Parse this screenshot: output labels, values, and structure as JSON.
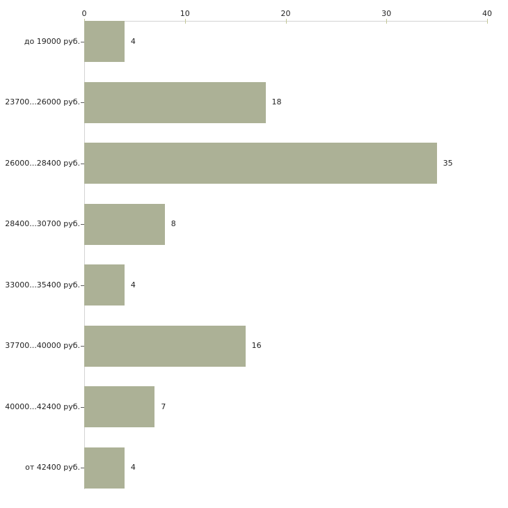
{
  "chart_data": {
    "type": "bar",
    "orientation": "horizontal",
    "title": "",
    "xlabel": "",
    "ylabel": "",
    "categories": [
      "до 19000 руб.",
      "23700...26000 руб.",
      "26000...28400 руб.",
      "28400...30700 руб.",
      "33000...35400 руб.",
      "37700...40000 руб.",
      "40000...42400 руб.",
      "от 42400 руб."
    ],
    "values": [
      4,
      18,
      35,
      8,
      4,
      16,
      7,
      4
    ],
    "value_labels": [
      "4",
      "18",
      "35",
      "8",
      "4",
      "16",
      "7",
      "4"
    ],
    "xlim": [
      0,
      40
    ],
    "xticks": [
      0,
      10,
      20,
      30,
      40
    ],
    "grid": false,
    "legend": false,
    "colors": {
      "bar_fill": "#acb196",
      "axis_line": "#d3d3d3",
      "x_tick_mark": "#c3c795",
      "category_tick_mark": "#5a5a5a",
      "text": "#1f1f1f",
      "background": "#ffffff"
    }
  }
}
